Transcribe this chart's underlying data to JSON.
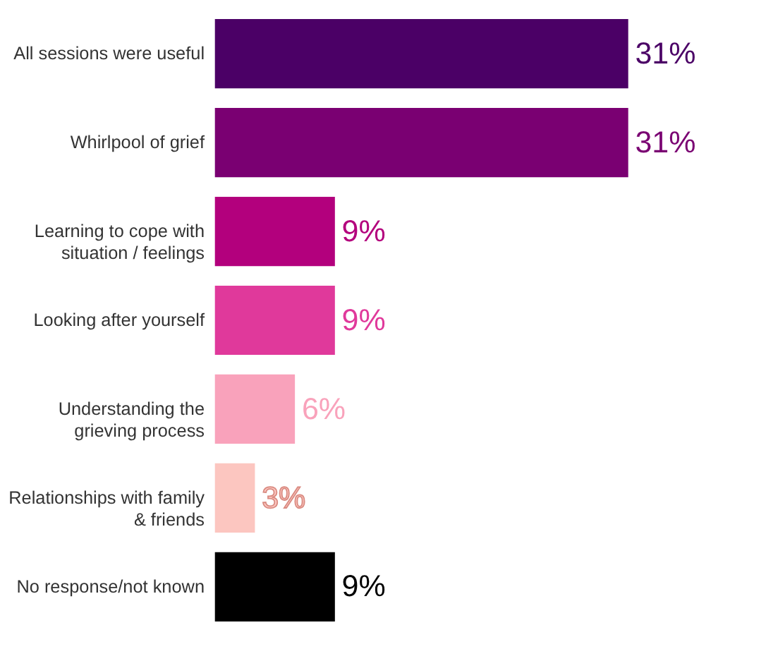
{
  "chart_data": {
    "type": "bar",
    "orientation": "horizontal",
    "categories": [
      "All sessions were useful",
      "Whirlpool of grief",
      "Learning to cope with\nsituation / feelings",
      "Looking after yourself",
      "Understanding the\ngrieving process",
      "Relationships with family\n& friends",
      "No response/not known"
    ],
    "values": [
      31,
      31,
      9,
      9,
      6,
      3,
      9
    ],
    "colors": [
      "#4b0066",
      "#7a0072",
      "#b3007d",
      "#e0399b",
      "#f9a2bb",
      "#fcc6c0",
      "#000000"
    ],
    "value_labels": [
      "31%",
      "31%",
      "9%",
      "9%",
      "6%",
      "3%",
      "9%"
    ]
  }
}
